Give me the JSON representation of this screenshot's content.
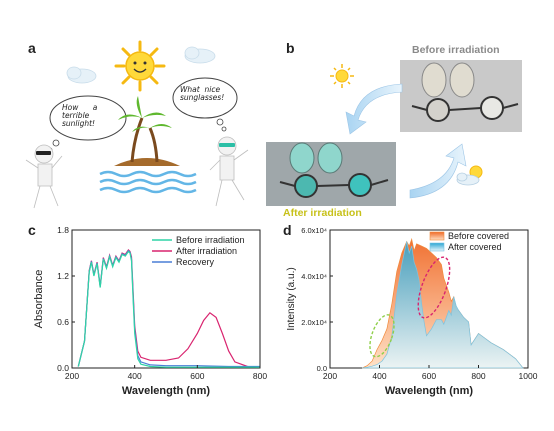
{
  "panels": {
    "a": "a",
    "b": "b",
    "c": "c",
    "d": "d"
  },
  "illustration": {
    "bubble_left": [
      "How",
      "a",
      "terrible",
      "sunlight!"
    ],
    "bubble_right": [
      "What",
      "nice",
      "sunglasses!"
    ]
  },
  "photos": {
    "before_caption": "Before irradiation",
    "after_caption": "After irradiation"
  },
  "colors": {
    "before": "#2fd4a6",
    "after": "#d9246f",
    "recovery": "#4a7fd6"
  },
  "chart_data": [
    {
      "type": "line",
      "xlabel": "Wavelength (nm)",
      "ylabel": "Absorbance",
      "xlim": [
        200,
        800
      ],
      "ylim": [
        0,
        1.8
      ],
      "xticks": [
        200,
        400,
        600,
        800
      ],
      "yticks": [
        0.0,
        0.6,
        1.2,
        1.8
      ],
      "ytick_labels": [
        "0.0",
        "0.6",
        "1.2",
        "1.8"
      ],
      "legend_position": "top-right",
      "series": [
        {
          "name": "Before irradiation",
          "color": "#2fd4a6",
          "x": [
            220,
            240,
            255,
            262,
            270,
            280,
            290,
            300,
            310,
            320,
            330,
            340,
            350,
            360,
            370,
            380,
            385,
            390,
            395,
            400,
            410,
            420,
            450,
            500,
            600,
            700,
            800
          ],
          "y": [
            0.02,
            0.35,
            1.25,
            1.38,
            1.2,
            1.36,
            1.05,
            1.42,
            1.3,
            1.45,
            1.32,
            1.44,
            1.38,
            1.48,
            1.46,
            1.52,
            1.5,
            1.4,
            0.9,
            0.45,
            0.12,
            0.05,
            0.02,
            0.01,
            0.01,
            0.01,
            0.01
          ]
        },
        {
          "name": "After irradiation",
          "color": "#d9246f",
          "x": [
            220,
            240,
            255,
            262,
            270,
            280,
            290,
            300,
            310,
            320,
            330,
            340,
            350,
            360,
            370,
            380,
            385,
            390,
            395,
            400,
            410,
            420,
            450,
            500,
            540,
            570,
            600,
            620,
            640,
            660,
            680,
            700,
            720,
            760,
            800
          ],
          "y": [
            0.02,
            0.35,
            1.27,
            1.4,
            1.22,
            1.38,
            1.07,
            1.44,
            1.32,
            1.47,
            1.34,
            1.46,
            1.4,
            1.5,
            1.48,
            1.54,
            1.52,
            1.45,
            1.0,
            0.55,
            0.22,
            0.14,
            0.1,
            0.1,
            0.13,
            0.25,
            0.45,
            0.62,
            0.72,
            0.66,
            0.45,
            0.22,
            0.08,
            0.02,
            0.01
          ]
        },
        {
          "name": "Recovery",
          "color": "#4a7fd6",
          "x": [
            220,
            240,
            255,
            262,
            270,
            280,
            290,
            300,
            310,
            320,
            330,
            340,
            350,
            360,
            370,
            380,
            385,
            390,
            395,
            400,
            410,
            420,
            450,
            500,
            600,
            700,
            800
          ],
          "y": [
            0.02,
            0.35,
            1.26,
            1.39,
            1.21,
            1.37,
            1.06,
            1.43,
            1.31,
            1.46,
            1.33,
            1.45,
            1.39,
            1.49,
            1.47,
            1.53,
            1.51,
            1.42,
            0.95,
            0.5,
            0.16,
            0.08,
            0.04,
            0.03,
            0.03,
            0.02,
            0.02
          ]
        }
      ]
    },
    {
      "type": "area",
      "xlabel": "Wavelength (nm)",
      "ylabel": "Intensity (a.u.)",
      "xlim": [
        200,
        1000
      ],
      "ylim": [
        0,
        60000
      ],
      "xticks": [
        200,
        400,
        600,
        800,
        1000
      ],
      "yticks": [
        0,
        20000,
        40000,
        60000
      ],
      "ytick_labels": [
        "0.0",
        "2.0x10⁴",
        "4.0x10⁴",
        "6.0x10⁴"
      ],
      "legend_position": "top-right",
      "series": [
        {
          "name": "Before covered",
          "color": "#f08a3c",
          "x": [
            330,
            350,
            370,
            390,
            410,
            430,
            450,
            470,
            490,
            510,
            520,
            530,
            540,
            550,
            570,
            590,
            610,
            630,
            650,
            660,
            680,
            690,
            700,
            710,
            720,
            740,
            760,
            770,
            800,
            850,
            900,
            950,
            980
          ],
          "y": [
            0,
            1000,
            3000,
            8000,
            12000,
            17000,
            28000,
            42000,
            50000,
            55000,
            53000,
            56000,
            51000,
            54000,
            53000,
            52000,
            50000,
            48000,
            45000,
            39000,
            33000,
            29000,
            31000,
            26000,
            25000,
            22000,
            20000,
            10000,
            15000,
            11000,
            8000,
            4000,
            0
          ]
        },
        {
          "name": "After covered",
          "color": "#7cc3e0",
          "x": [
            330,
            350,
            370,
            390,
            410,
            430,
            450,
            470,
            490,
            510,
            520,
            530,
            540,
            550,
            560,
            570,
            580,
            590,
            610,
            630,
            650,
            660,
            680,
            690,
            700,
            710,
            720,
            740,
            760,
            770,
            800,
            850,
            900,
            950,
            980
          ],
          "y": [
            0,
            300,
            800,
            1500,
            3000,
            6000,
            14000,
            32000,
            45000,
            55000,
            50000,
            53000,
            46000,
            43000,
            38000,
            28000,
            20000,
            14000,
            17000,
            21000,
            21000,
            19000,
            25000,
            23000,
            31000,
            27000,
            25000,
            22000,
            20000,
            10000,
            15000,
            11000,
            8000,
            4000,
            0
          ]
        }
      ],
      "annotations": [
        {
          "shape": "ellipse",
          "style": "dashed",
          "color": "#8fcf4a",
          "center": [
            410,
            14000
          ]
        },
        {
          "shape": "ellipse",
          "style": "dashed",
          "color": "#d9246f",
          "center": [
            620,
            35000
          ]
        }
      ]
    }
  ]
}
